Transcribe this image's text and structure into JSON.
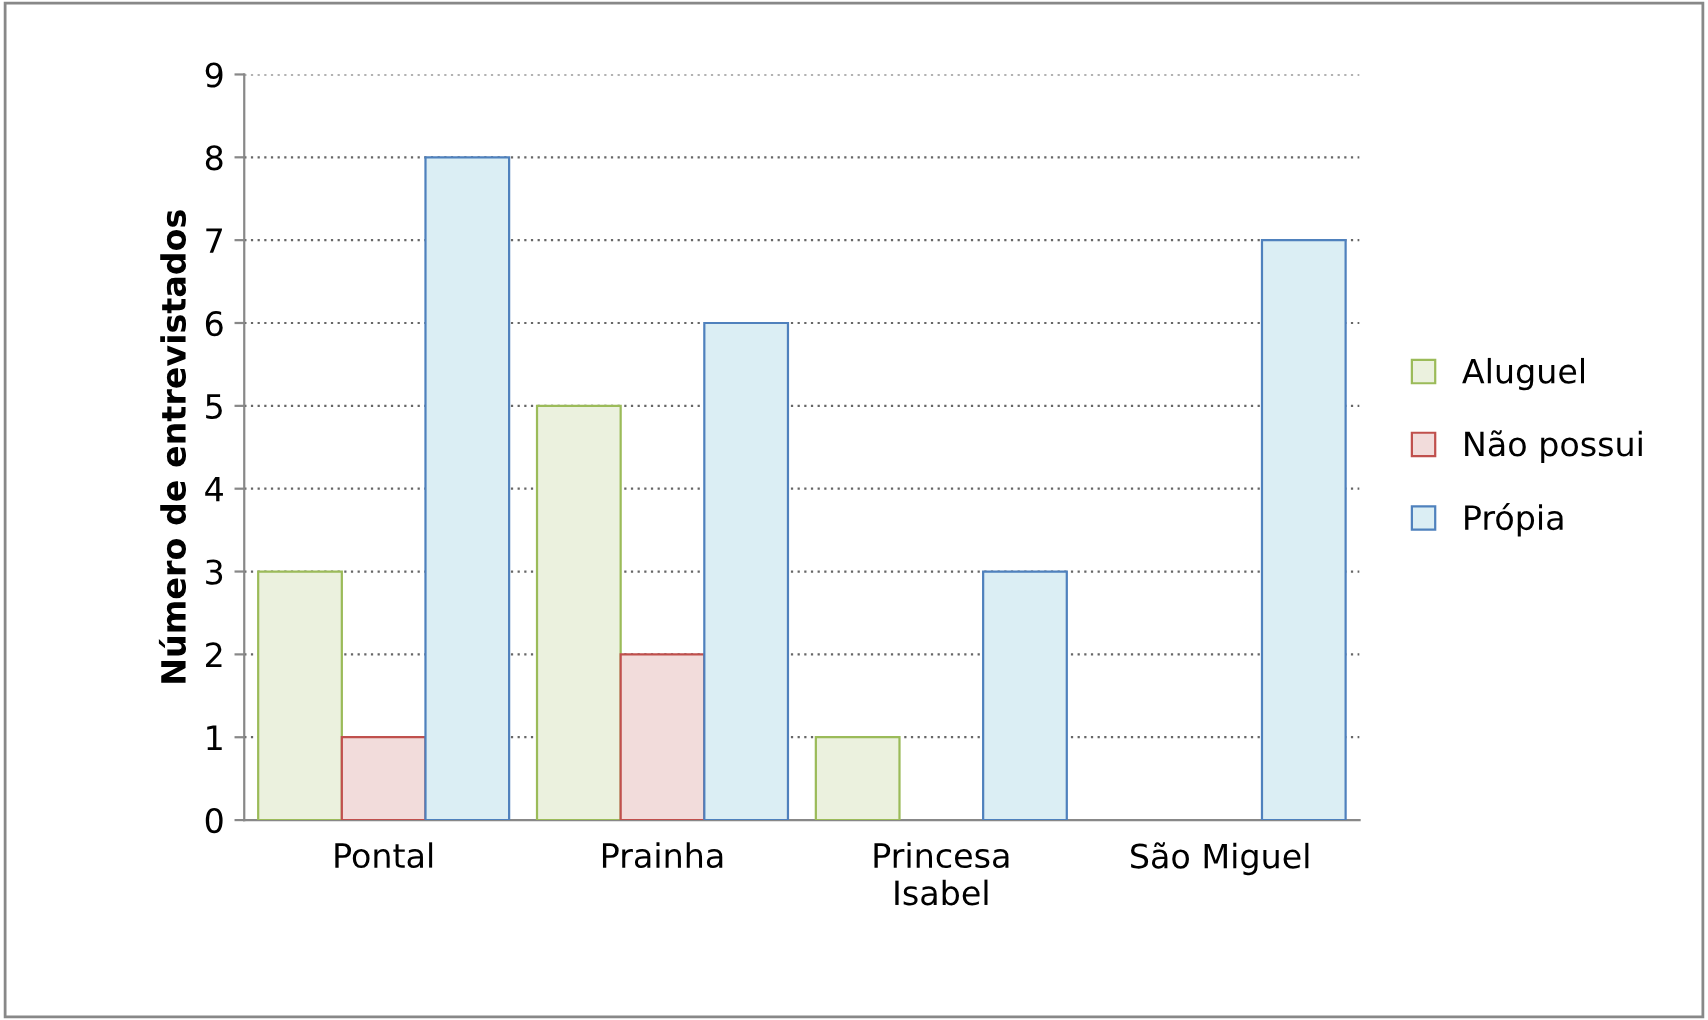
{
  "chart_data": {
    "type": "bar",
    "ylabel": "Número de entrevistados",
    "categories": [
      "Pontal",
      "Prainha",
      "Princesa\nIsabel",
      "São Miguel"
    ],
    "series": [
      {
        "name": "Aluguel",
        "color": "#ebf1de",
        "values": [
          3,
          5,
          1,
          0
        ]
      },
      {
        "name": "Não possui",
        "color": "#f2dcdb",
        "values": [
          1,
          2,
          0,
          0
        ]
      },
      {
        "name": "Própia",
        "color": "#dbeef4",
        "values": [
          8,
          6,
          3,
          7
        ]
      }
    ],
    "ylim": [
      0,
      9
    ],
    "yticks": [
      0,
      1,
      2,
      3,
      4,
      5,
      6,
      7,
      8,
      9
    ],
    "grid": "y",
    "legend": "right"
  }
}
